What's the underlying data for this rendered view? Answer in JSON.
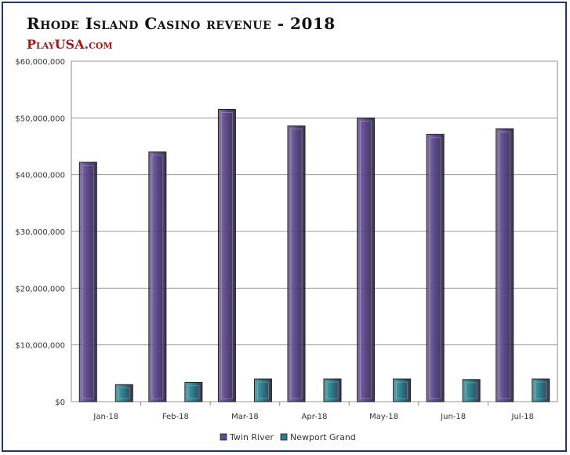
{
  "chart_data": {
    "type": "bar",
    "title": "Rhode Island Casino revenue - 2018",
    "subtitle": "PlayUSA.com",
    "categories": [
      "Jan-18",
      "Feb-18",
      "Mar-18",
      "Apr-18",
      "May-18",
      "Jun-18",
      "Jul-18"
    ],
    "series": [
      {
        "name": "Twin River",
        "color": "#5e4a8c",
        "values": [
          42200000,
          44000000,
          51500000,
          48600000,
          50000000,
          47100000,
          48100000
        ]
      },
      {
        "name": "Newport Grand",
        "color": "#2a7f8c",
        "values": [
          3000000,
          3400000,
          4000000,
          4000000,
          4000000,
          3900000,
          4000000
        ]
      }
    ],
    "ylim": [
      0,
      60000000
    ],
    "yticks": [
      "$0",
      "$10,000,000",
      "$20,000,000",
      "$30,000,000",
      "$40,000,000",
      "$50,000,000",
      "$60,000,000"
    ],
    "ytick_values": [
      0,
      10000000,
      20000000,
      30000000,
      40000000,
      50000000,
      60000000
    ],
    "grid": true,
    "legend": "bottom-center"
  }
}
